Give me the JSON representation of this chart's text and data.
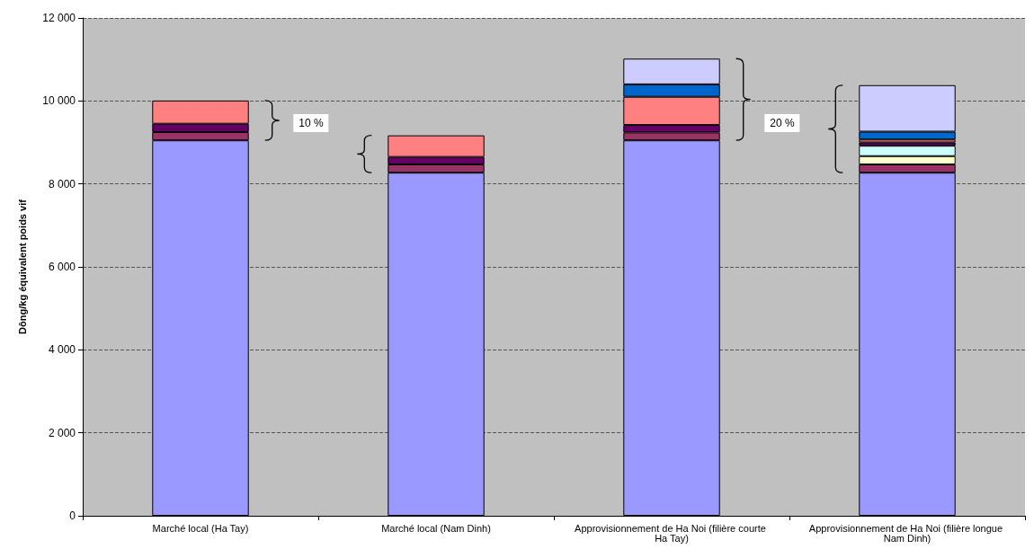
{
  "chart_data": {
    "type": "bar",
    "stacked": true,
    "ylabel": "Dông/kg équivalent poids vif",
    "categories": [
      "Marché local (Ha Tay)",
      "Marché local (Nam Dinh)",
      "Approvisionnement de Ha Noi (filière courte Ha Tay)",
      "Approvisionnement de Ha Noi (filière longue Nam Dinh)"
    ],
    "series": [
      {
        "color": "#9999ff",
        "values": [
          9050,
          8270,
          9050,
          8270
        ]
      },
      {
        "color": "#993366",
        "values": [
          200,
          200,
          190,
          200
        ]
      },
      {
        "color": "#ffffcc",
        "values": [
          null,
          null,
          null,
          200
        ]
      },
      {
        "color": "#ccffff",
        "values": [
          null,
          null,
          null,
          250
        ]
      },
      {
        "color": "#660066",
        "values": [
          200,
          180,
          180,
          80
        ]
      },
      {
        "color": "#ff8080",
        "values": [
          560,
          520,
          680,
          70
        ]
      },
      {
        "color": "#0066cc",
        "values": [
          null,
          null,
          300,
          190
        ]
      },
      {
        "color": "#ccccff",
        "values": [
          null,
          null,
          620,
          1120
        ]
      }
    ],
    "ylim": [
      0,
      12000
    ],
    "yticks": [
      0,
      {
        "value": 2000,
        "label": "2 000"
      },
      {
        "value": 4000,
        "label": "4 000"
      },
      {
        "value": 6000,
        "label": "6 000"
      },
      {
        "value": 8000,
        "label": "8 000"
      },
      {
        "value": 10000,
        "label": "10 000"
      },
      {
        "value": 12000,
        "label": "12 000"
      }
    ],
    "grid": "y",
    "annotations": [
      "10 %",
      "20 %"
    ]
  }
}
